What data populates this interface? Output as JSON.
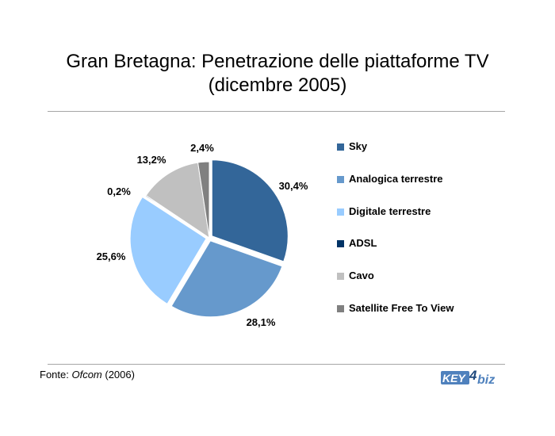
{
  "title_line1": "Gran Bretagna: Penetrazione delle piattaforme TV",
  "title_line2": "(dicembre 2005)",
  "footer": {
    "prefix": "Fonte: ",
    "source": "Ofcom",
    "suffix": " (2006)"
  },
  "logo": {
    "text_left": "KEY",
    "text_digit": "4",
    "text_right": "biz"
  },
  "colors": {
    "Sky": "#336699",
    "Analogica terrestre": "#6699cc",
    "Digitale terrestre": "#99ccff",
    "ADSL": "#003366",
    "Cavo": "#c0c0c0",
    "Satellite Free To View": "#808080"
  },
  "chart_data": {
    "type": "pie",
    "title": "Gran Bretagna: Penetrazione delle piattaforme TV (dicembre 2005)",
    "categories": [
      "Sky",
      "Analogica terrestre",
      "Digitale terrestre",
      "ADSL",
      "Cavo",
      "Satellite Free To View"
    ],
    "values": [
      30.4,
      28.1,
      25.6,
      0.2,
      13.2,
      2.4
    ],
    "labels": [
      "30,4%",
      "28,1%",
      "25,6%",
      "0,2%",
      "13,2%",
      "2,4%"
    ],
    "legend_labels": [
      "Sky",
      "Analogica terrestre",
      "Digitale terrestre",
      "ADSL",
      "Cavo",
      "Satellite Free To View"
    ],
    "legend_position": "right"
  }
}
